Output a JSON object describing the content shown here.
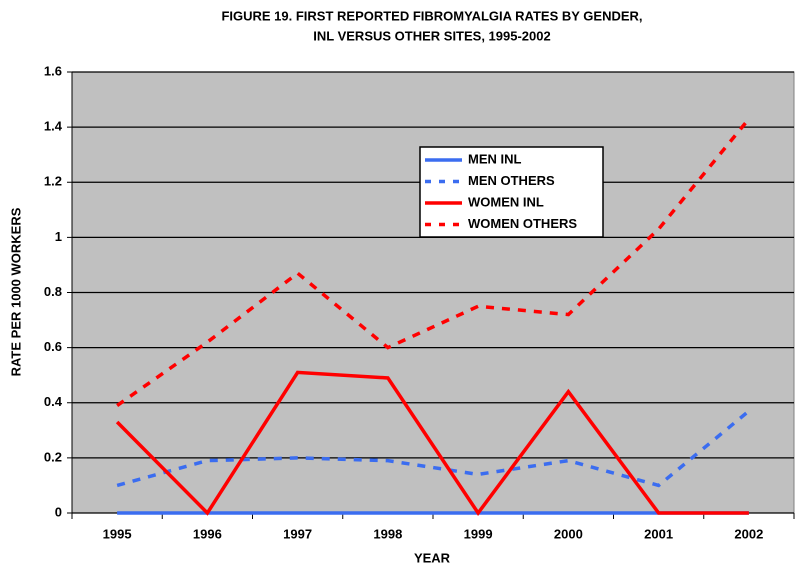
{
  "chart_data": {
    "type": "line",
    "title": [
      "FIGURE 19.  FIRST REPORTED FIBROMYALGIA RATES BY GENDER,",
      "INL VERSUS OTHER SITES, 1995-2002"
    ],
    "x_label": "YEAR",
    "y_label": "RATE PER 1000 WORKERS",
    "categories": [
      "1995",
      "1996",
      "1997",
      "1998",
      "1999",
      "2000",
      "2001",
      "2002"
    ],
    "series": [
      {
        "name": "MEN INL",
        "color": "#3b6df0",
        "dashed": false,
        "values": [
          0,
          0,
          0,
          0,
          0,
          0,
          0,
          0
        ]
      },
      {
        "name": "MEN OTHERS",
        "color": "#3b6df0",
        "dashed": true,
        "values": [
          0.1,
          0.19,
          0.2,
          0.19,
          0.14,
          0.19,
          0.1,
          0.37
        ]
      },
      {
        "name": "WOMEN INL",
        "color": "#ff0000",
        "dashed": false,
        "values": [
          0.33,
          0,
          0.51,
          0.49,
          0,
          0.44,
          0,
          0
        ]
      },
      {
        "name": "WOMEN OTHERS",
        "color": "#ff0000",
        "dashed": true,
        "values": [
          0.39,
          0.62,
          0.87,
          0.6,
          0.75,
          0.72,
          1.03,
          1.43
        ]
      }
    ],
    "ylim": [
      0,
      1.6
    ],
    "yticks": [
      0,
      0.2,
      0.4,
      0.6,
      0.8,
      1,
      1.2,
      1.4,
      1.6
    ],
    "grid": true,
    "plot_background": "#c0c0c0"
  }
}
